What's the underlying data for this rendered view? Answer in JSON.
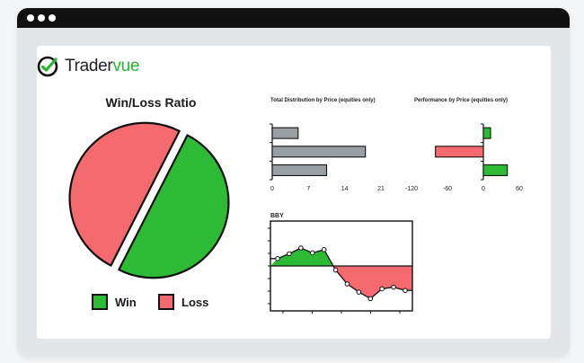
{
  "app": {
    "logo_text_a": "Trader",
    "logo_text_b": "vue"
  },
  "colors": {
    "win": "#2dbb36",
    "loss": "#f46a6e",
    "bar_gray": "#999fa3",
    "outline": "#111111",
    "brand_green": "#27b532"
  },
  "icons": {
    "logo": "check-circle-icon",
    "window_dots": "traffic-dots-icon"
  },
  "chart_data": [
    {
      "type": "pie",
      "title": "Win/Loss Ratio",
      "categories": [
        "Win",
        "Loss"
      ],
      "values": [
        50,
        50
      ],
      "legend": "bottom"
    },
    {
      "type": "bar",
      "orientation": "horizontal",
      "title": "Total Distribution by Price (equities only)",
      "categories": [
        "",
        "",
        ""
      ],
      "values": [
        5,
        18,
        10.5
      ],
      "xlim": [
        0,
        21
      ],
      "xticks": [
        "0",
        "7",
        "14",
        "21"
      ]
    },
    {
      "type": "bar",
      "orientation": "horizontal",
      "title": "Performance by Price (equities only)",
      "categories": [
        "",
        "",
        ""
      ],
      "values": [
        12,
        -80,
        40
      ],
      "xlim": [
        -120,
        60
      ],
      "xticks": [
        "-120",
        "-60",
        "0",
        "60"
      ]
    },
    {
      "type": "area",
      "title": "BBY",
      "x": [
        0,
        1,
        2,
        3,
        4,
        5,
        6,
        7,
        8,
        9,
        10,
        11
      ],
      "values": [
        0.9,
        1.5,
        2.2,
        1.6,
        2.0,
        -0.5,
        -2.2,
        -3.2,
        -4.0,
        -2.8,
        -2.6,
        -3.0
      ],
      "ylim": [
        -5.5,
        5.5
      ],
      "baseline": 0
    }
  ]
}
